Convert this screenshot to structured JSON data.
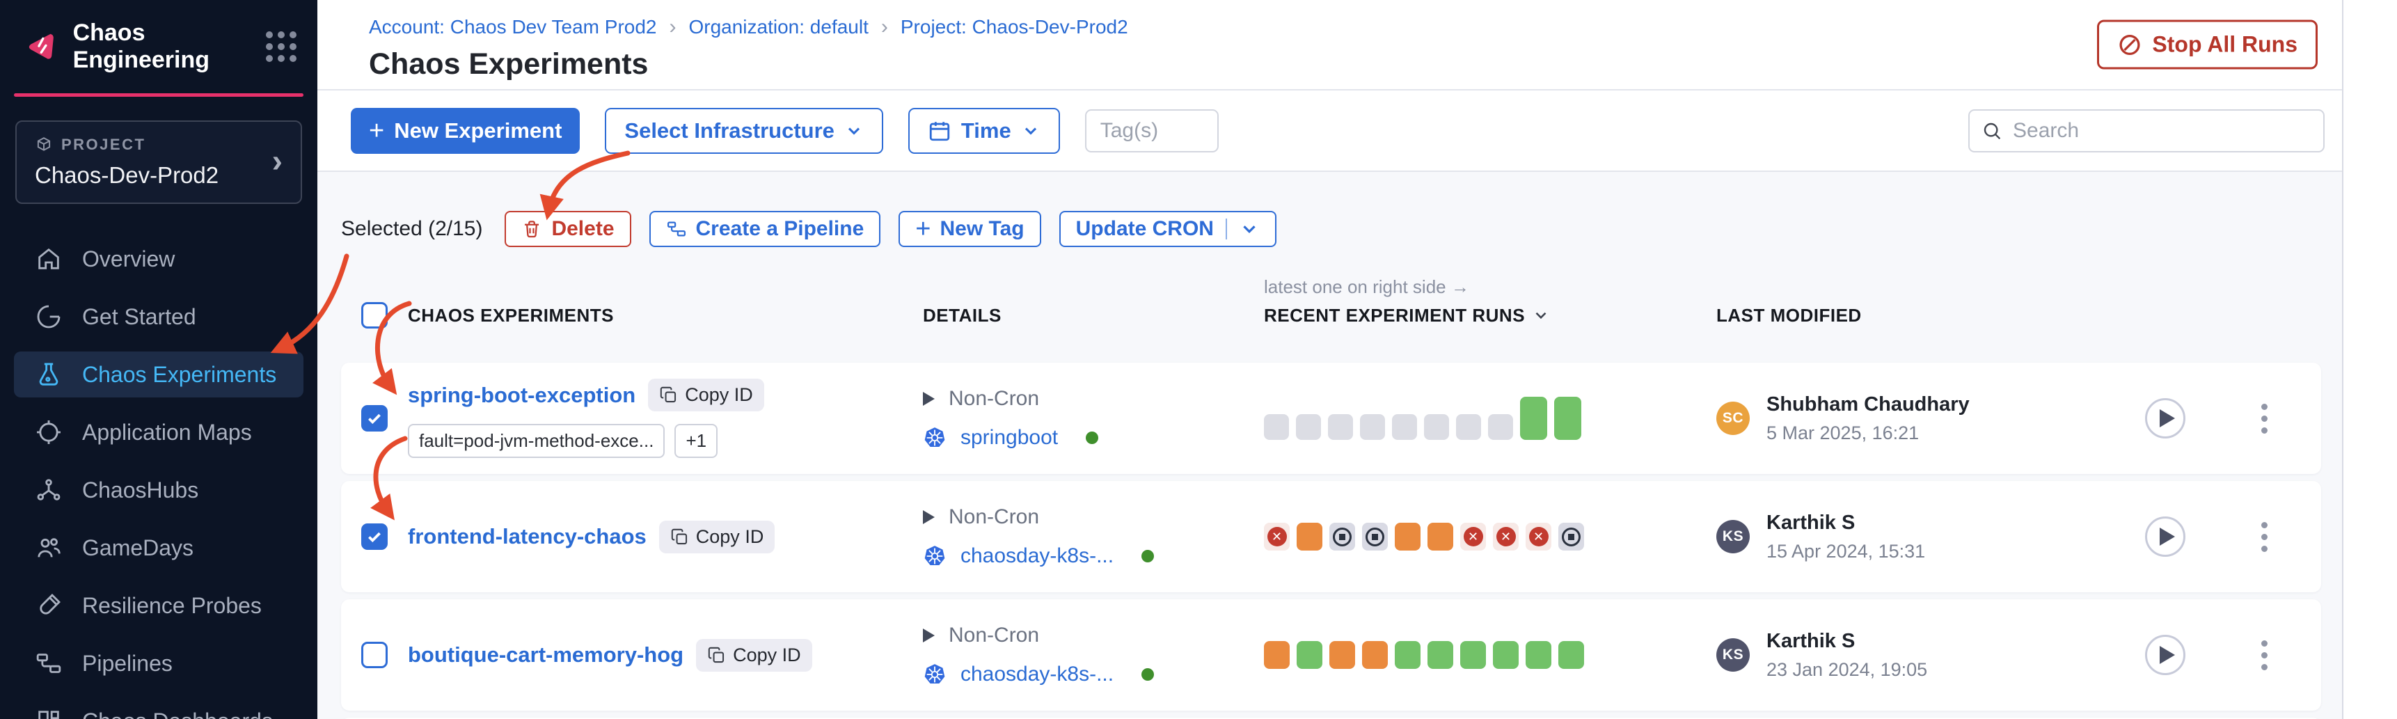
{
  "sidebar": {
    "app_title": "Chaos Engineering",
    "project_label": "PROJECT",
    "project_name": "Chaos-Dev-Prod2",
    "items": [
      {
        "label": "Overview",
        "icon": "home",
        "active": false
      },
      {
        "label": "Get Started",
        "icon": "get-started",
        "active": false
      },
      {
        "label": "Chaos Experiments",
        "icon": "flask",
        "active": true
      },
      {
        "label": "Application Maps",
        "icon": "app-maps",
        "active": false
      },
      {
        "label": "ChaosHubs",
        "icon": "hubs",
        "active": false
      },
      {
        "label": "GameDays",
        "icon": "gamedays",
        "active": false
      },
      {
        "label": "Resilience Probes",
        "icon": "probes",
        "active": false
      },
      {
        "label": "Pipelines",
        "icon": "pipelines",
        "active": false
      },
      {
        "label": "Chaos Dashboards",
        "icon": "dashboards",
        "active": false
      }
    ]
  },
  "header": {
    "breadcrumb": [
      "Account: Chaos Dev Team Prod2",
      "Organization: default",
      "Project: Chaos-Dev-Prod2"
    ],
    "title": "Chaos Experiments",
    "stop_all_runs_label": "Stop All Runs"
  },
  "toolbar": {
    "new_experiment_label": "New Experiment",
    "select_infrastructure_label": "Select Infrastructure",
    "time_label": "Time",
    "tags_placeholder": "Tag(s)",
    "search_placeholder": "Search"
  },
  "selected_bar": {
    "label": "Selected (2/15)",
    "delete_label": "Delete",
    "create_pipeline_label": "Create a Pipeline",
    "new_tag_label": "New Tag",
    "update_cron_label": "Update CRON"
  },
  "table": {
    "annotation": "latest one on right side →",
    "columns": {
      "experiments": "CHAOS EXPERIMENTS",
      "details": "DETAILS",
      "runs": "RECENT EXPERIMENT RUNS",
      "modified": "LAST MODIFIED"
    },
    "copy_id_label": "Copy ID",
    "rows": [
      {
        "checked": true,
        "name": "spring-boot-exception",
        "tags": [
          "fault=pod-jvm-method-exce...",
          "+1"
        ],
        "cron": "Non-Cron",
        "infrastructure": "springboot",
        "runs": [
          {
            "status": "norun"
          },
          {
            "status": "norun"
          },
          {
            "status": "norun"
          },
          {
            "status": "norun"
          },
          {
            "status": "norun"
          },
          {
            "status": "norun"
          },
          {
            "status": "norun"
          },
          {
            "status": "norun"
          },
          {
            "status": "success",
            "latest": true
          },
          {
            "status": "success",
            "latest": true
          }
        ],
        "author": {
          "initials": "SC",
          "color": "#eaa23e",
          "name": "Shubham Chaudhary",
          "date": "5 Mar 2025, 16:21"
        }
      },
      {
        "checked": true,
        "name": "frontend-latency-chaos",
        "tags": [],
        "cron": "Non-Cron",
        "infrastructure": "chaosday-k8s-...",
        "runs": [
          {
            "status": "failed"
          },
          {
            "status": "warning"
          },
          {
            "status": "stopped"
          },
          {
            "status": "stopped"
          },
          {
            "status": "warning"
          },
          {
            "status": "warning"
          },
          {
            "status": "failed"
          },
          {
            "status": "failed"
          },
          {
            "status": "failed"
          },
          {
            "status": "stopped"
          }
        ],
        "author": {
          "initials": "KS",
          "color": "#50536a",
          "name": "Karthik S",
          "date": "15 Apr 2024, 15:31"
        }
      },
      {
        "checked": false,
        "name": "boutique-cart-memory-hog",
        "tags": [],
        "cron": "Non-Cron",
        "infrastructure": "chaosday-k8s-...",
        "runs": [
          {
            "status": "warning"
          },
          {
            "status": "success"
          },
          {
            "status": "warning"
          },
          {
            "status": "warning"
          },
          {
            "status": "success"
          },
          {
            "status": "success"
          },
          {
            "status": "success"
          },
          {
            "status": "success"
          },
          {
            "status": "success"
          },
          {
            "status": "success"
          }
        ],
        "author": {
          "initials": "KS",
          "color": "#50536a",
          "name": "Karthik S",
          "date": "23 Jan 2024, 19:05"
        }
      }
    ]
  },
  "colors": {
    "primary_blue": "#2e6cd6",
    "link_blue": "#2a6bd3",
    "danger_red": "#bd3728",
    "sidebar_active": "#45b8f6",
    "run_success": "#72c268",
    "run_warning": "#ea8a3e",
    "run_failed": "#c23a2f",
    "annotation_arrow": "#e44a2c"
  }
}
